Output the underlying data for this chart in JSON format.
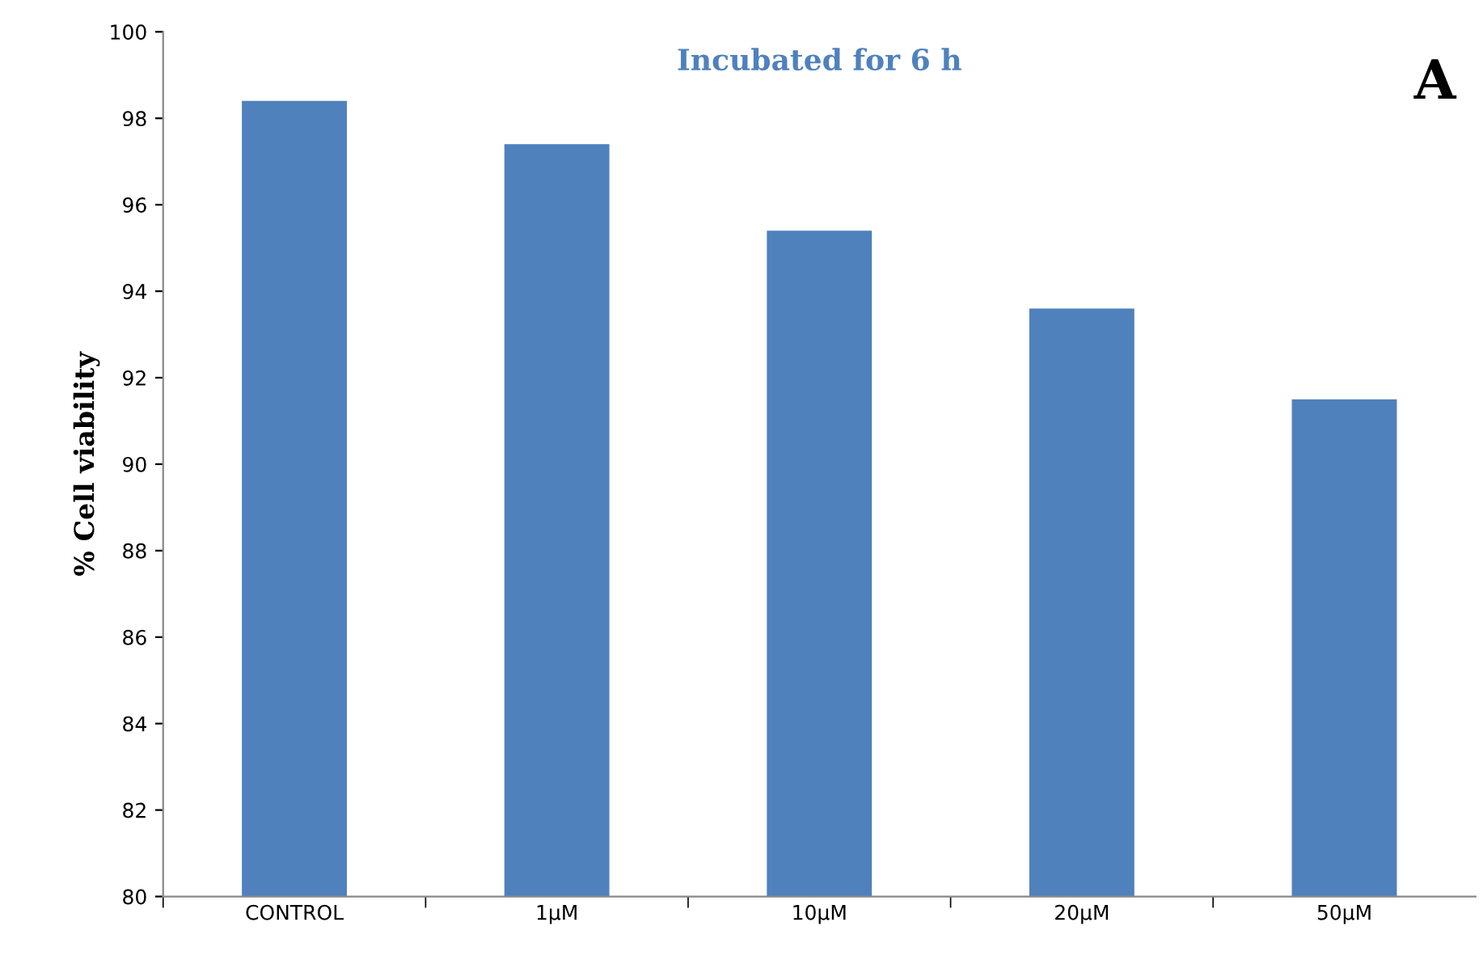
{
  "chart_data": {
    "type": "bar",
    "title": "Incubated for 6 h",
    "ylabel": "% Cell viability",
    "annotations": [
      "A"
    ],
    "categories": [
      "CONTROL",
      "1µM",
      "10µM",
      "20µM",
      "50µM"
    ],
    "values": [
      98.4,
      97.4,
      95.4,
      93.6,
      91.5
    ],
    "color": "#4f81bd",
    "ylim": [
      80,
      100
    ],
    "yticks": [
      80,
      82,
      84,
      86,
      88,
      90,
      92,
      94,
      96,
      98,
      100
    ],
    "grid": false
  }
}
